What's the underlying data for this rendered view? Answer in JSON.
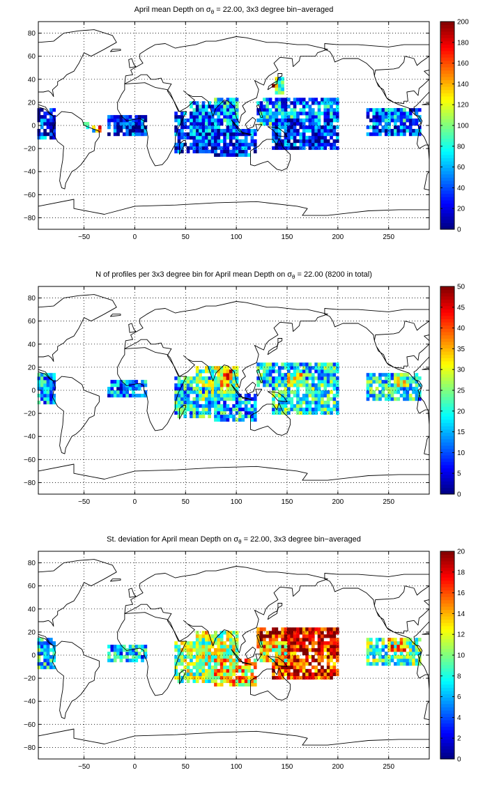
{
  "chart_data": [
    {
      "type": "heatmap",
      "title": "April mean Depth on σ",
      "title_sub": "θ",
      "title_rest": " = 22.00, 3x3 degree bin−averaged",
      "xlim": [
        -95,
        290
      ],
      "ylim": [
        -90,
        90
      ],
      "xticks": [
        -50,
        0,
        50,
        100,
        150,
        200,
        250
      ],
      "yticks": [
        -80,
        -60,
        -40,
        -20,
        0,
        20,
        40,
        60,
        80
      ],
      "grid": true,
      "colormap": "jet",
      "colorbar": {
        "min": 0,
        "max": 200,
        "ticks": [
          0,
          20,
          40,
          60,
          80,
          100,
          120,
          140,
          160,
          180,
          200
        ],
        "placement": "right"
      },
      "patches": [
        {
          "x0": -95,
          "x1": -78,
          "y0": -10,
          "y1": 15,
          "value": 35
        },
        {
          "x0": -40,
          "x1": -35,
          "y0": -6,
          "y1": -2,
          "value": 140
        },
        {
          "x0": -45,
          "x1": -40,
          "y0": -4,
          "y1": 0,
          "value": 85
        },
        {
          "x0": -50,
          "x1": -45,
          "y0": -2,
          "y1": 2,
          "value": 60
        },
        {
          "x0": -25,
          "x1": 12,
          "y0": -8,
          "y1": 8,
          "value": 25
        },
        {
          "x0": 40,
          "x1": 80,
          "y0": -22,
          "y1": 12,
          "value": 30
        },
        {
          "x0": 55,
          "x1": 100,
          "y0": -10,
          "y1": 20,
          "value": 45
        },
        {
          "x0": 80,
          "x1": 100,
          "y0": 5,
          "y1": 22,
          "value": 65
        },
        {
          "x0": 80,
          "x1": 120,
          "y0": -25,
          "y1": -5,
          "value": 35
        },
        {
          "x0": 120,
          "x1": 200,
          "y0": 5,
          "y1": 22,
          "value": 55
        },
        {
          "x0": 125,
          "x1": 160,
          "y0": 0,
          "y1": 12,
          "value": 75
        },
        {
          "x0": 135,
          "x1": 200,
          "y0": -20,
          "y1": 5,
          "value": 30
        },
        {
          "x0": 140,
          "x1": 145,
          "y0": 28,
          "y1": 40,
          "value": 90
        },
        {
          "x0": 137,
          "x1": 140,
          "y0": 33,
          "y1": 36,
          "value": 180
        },
        {
          "x0": 230,
          "x1": 280,
          "y0": -8,
          "y1": 15,
          "value": 40
        },
        {
          "x0": 240,
          "x1": 270,
          "y0": 5,
          "y1": 15,
          "value": 55
        }
      ]
    },
    {
      "type": "heatmap",
      "title": "N of profiles per 3x3 degree bin for April mean Depth on σ",
      "title_sub": "θ",
      "title_rest": " = 22.00 (8200 in total)",
      "xlim": [
        -95,
        290
      ],
      "ylim": [
        -90,
        90
      ],
      "xticks": [
        -50,
        0,
        50,
        100,
        150,
        200,
        250
      ],
      "yticks": [
        -80,
        -60,
        -40,
        -20,
        0,
        20,
        40,
        60,
        80
      ],
      "grid": true,
      "colormap": "jet",
      "colorbar": {
        "min": 0,
        "max": 50,
        "ticks": [
          0,
          5,
          10,
          15,
          20,
          25,
          30,
          35,
          40,
          45,
          50
        ],
        "placement": "right"
      },
      "patches": [
        {
          "x0": -95,
          "x1": -80,
          "y0": -10,
          "y1": 15,
          "value": 15
        },
        {
          "x0": -25,
          "x1": 12,
          "y0": -5,
          "y1": 8,
          "value": 12
        },
        {
          "x0": 40,
          "x1": 80,
          "y0": -22,
          "y1": 12,
          "value": 18
        },
        {
          "x0": 60,
          "x1": 100,
          "y0": -8,
          "y1": 20,
          "value": 24
        },
        {
          "x0": 85,
          "x1": 95,
          "y0": 5,
          "y1": 18,
          "value": 38
        },
        {
          "x0": 80,
          "x1": 120,
          "y0": -25,
          "y1": -5,
          "value": 16
        },
        {
          "x0": 120,
          "x1": 200,
          "y0": 5,
          "y1": 22,
          "value": 18
        },
        {
          "x0": 135,
          "x1": 200,
          "y0": -20,
          "y1": 5,
          "value": 20
        },
        {
          "x0": 150,
          "x1": 165,
          "y0": 5,
          "y1": 15,
          "value": 30
        },
        {
          "x0": 230,
          "x1": 280,
          "y0": -8,
          "y1": 15,
          "value": 18
        },
        {
          "x0": 255,
          "x1": 268,
          "y0": 5,
          "y1": 14,
          "value": 30
        }
      ]
    },
    {
      "type": "heatmap",
      "title": "St. deviation for April mean Depth on σ",
      "title_sub": "θ",
      "title_rest": " = 22.00, 3x3 degree bin−averaged",
      "xlim": [
        -95,
        290
      ],
      "ylim": [
        -90,
        90
      ],
      "xticks": [
        -50,
        0,
        50,
        100,
        150,
        200,
        250
      ],
      "yticks": [
        -80,
        -60,
        -40,
        -20,
        0,
        20,
        40,
        60,
        80
      ],
      "grid": true,
      "colormap": "jet",
      "colorbar": {
        "min": 0,
        "max": 20,
        "ticks": [
          0,
          2,
          4,
          6,
          8,
          10,
          12,
          14,
          16,
          18,
          20
        ],
        "placement": "right"
      },
      "patches": [
        {
          "x0": -95,
          "x1": -80,
          "y0": -10,
          "y1": 15,
          "value": 7
        },
        {
          "x0": -25,
          "x1": 12,
          "y0": -5,
          "y1": 8,
          "value": 6
        },
        {
          "x0": 40,
          "x1": 80,
          "y0": -22,
          "y1": 12,
          "value": 10
        },
        {
          "x0": 60,
          "x1": 100,
          "y0": -8,
          "y1": 20,
          "value": 11
        },
        {
          "x0": 80,
          "x1": 120,
          "y0": -25,
          "y1": -5,
          "value": 13
        },
        {
          "x0": 120,
          "x1": 200,
          "y0": 5,
          "y1": 22,
          "value": 18
        },
        {
          "x0": 135,
          "x1": 200,
          "y0": -20,
          "y1": 5,
          "value": 17
        },
        {
          "x0": 125,
          "x1": 150,
          "y0": -5,
          "y1": 10,
          "value": 12
        },
        {
          "x0": 230,
          "x1": 280,
          "y0": -8,
          "y1": 15,
          "value": 9
        },
        {
          "x0": 250,
          "x1": 265,
          "y0": 5,
          "y1": 15,
          "value": 15
        }
      ]
    }
  ]
}
